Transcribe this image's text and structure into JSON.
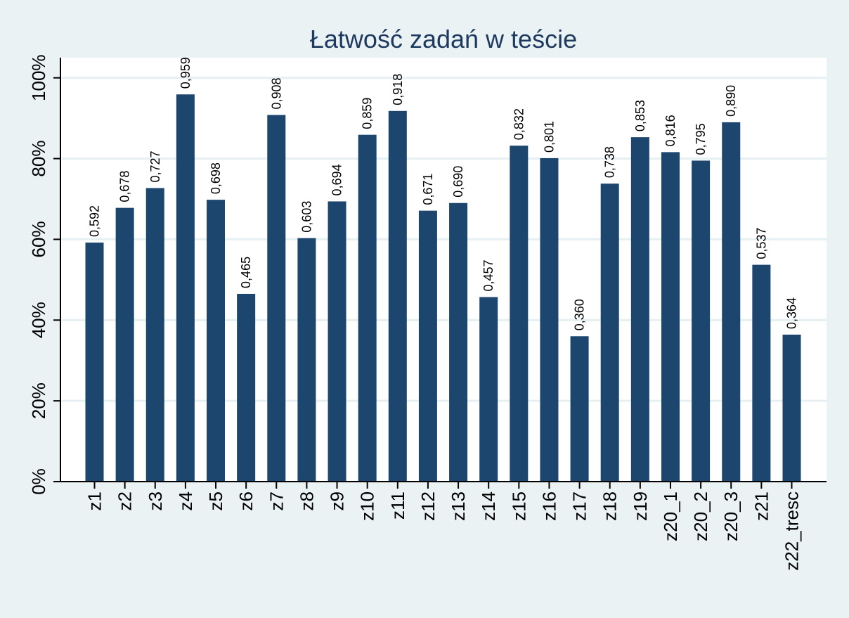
{
  "chart_data": {
    "type": "bar",
    "title": "Łatwość zadań w teście",
    "xlabel": "",
    "ylabel": "",
    "ylim": [
      0,
      1.05
    ],
    "yticks": [
      0,
      0.2,
      0.4,
      0.6,
      0.8,
      1.0
    ],
    "ytick_labels": [
      "0%",
      "20%",
      "40%",
      "60%",
      "80%",
      "100%"
    ],
    "grid": true,
    "categories": [
      "z1",
      "z2",
      "z3",
      "z4",
      "z5",
      "z6",
      "z7",
      "z8",
      "z9",
      "z10",
      "z11",
      "z12",
      "z13",
      "z14",
      "z15",
      "z16",
      "z17",
      "z18",
      "z19",
      "z20_1",
      "z20_2",
      "z20_3",
      "z21",
      "z22_tresc"
    ],
    "values": [
      0.592,
      0.678,
      0.727,
      0.959,
      0.698,
      0.465,
      0.908,
      0.603,
      0.694,
      0.859,
      0.918,
      0.671,
      0.69,
      0.457,
      0.832,
      0.801,
      0.36,
      0.738,
      0.853,
      0.816,
      0.795,
      0.89,
      0.537,
      0.364
    ],
    "data_labels": [
      "0,592",
      "0,678",
      "0,727",
      "0,959",
      "0,698",
      "0,465",
      "0,908",
      "0,603",
      "0,694",
      "0,859",
      "0,918",
      "0,671",
      "0,690",
      "0,457",
      "0,832",
      "0,801",
      "0,360",
      "0,738",
      "0,853",
      "0,816",
      "0,795",
      "0,890",
      "0,537",
      "0,364"
    ],
    "colors": {
      "bar": "#1d466e",
      "background": "#eaf2f3",
      "plot_background": "#ffffff",
      "grid": "#e6eff1",
      "title": "#1e3a5f"
    }
  }
}
